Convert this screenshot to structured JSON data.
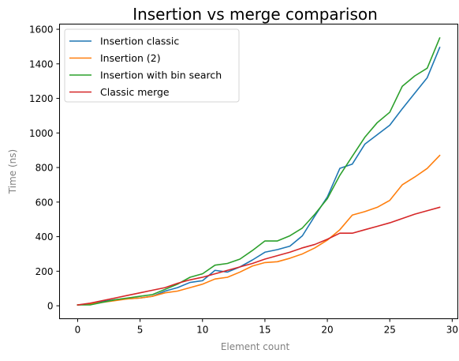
{
  "chart_data": {
    "type": "line",
    "title": "Insertion vs merge comparison",
    "xlabel": "Element count",
    "ylabel": "Time (ns)",
    "xlim": [
      -1.45,
      30.45
    ],
    "ylim": [
      -75,
      1630
    ],
    "xticks": [
      0,
      5,
      10,
      15,
      20,
      25,
      30
    ],
    "yticks": [
      0,
      200,
      400,
      600,
      800,
      1000,
      1200,
      1400,
      1600
    ],
    "grid": false,
    "legend_position": "top-left",
    "x": [
      0,
      1,
      2,
      3,
      4,
      5,
      6,
      7,
      8,
      9,
      10,
      11,
      12,
      13,
      14,
      15,
      16,
      17,
      18,
      19,
      20,
      21,
      22,
      23,
      24,
      25,
      26,
      27,
      28,
      29
    ],
    "series": [
      {
        "name": "Insertion classic",
        "color": "#1f77b4",
        "values": [
          5,
          10,
          25,
          35,
          40,
          45,
          55,
          85,
          105,
          135,
          145,
          205,
          195,
          225,
          265,
          310,
          325,
          345,
          405,
          520,
          630,
          795,
          820,
          935,
          990,
          1045,
          1140,
          1230,
          1320,
          1495
        ]
      },
      {
        "name": "Insertion (2)",
        "color": "#ff7f0e",
        "values": [
          5,
          10,
          20,
          30,
          40,
          45,
          55,
          75,
          85,
          105,
          125,
          155,
          165,
          195,
          230,
          250,
          255,
          275,
          300,
          335,
          380,
          440,
          525,
          545,
          570,
          610,
          700,
          745,
          795,
          870
        ]
      },
      {
        "name": "Insertion with bin search",
        "color": "#2ca02c",
        "values": [
          5,
          5,
          20,
          35,
          45,
          55,
          65,
          95,
          125,
          165,
          185,
          235,
          245,
          270,
          320,
          375,
          375,
          405,
          450,
          530,
          620,
          755,
          865,
          975,
          1060,
          1120,
          1270,
          1330,
          1375,
          1550
        ]
      },
      {
        "name": "Classic merge",
        "color": "#d62728",
        "values": [
          5,
          15,
          30,
          45,
          60,
          75,
          90,
          105,
          130,
          150,
          165,
          185,
          205,
          225,
          245,
          270,
          290,
          310,
          335,
          355,
          385,
          420,
          420,
          440,
          460,
          480,
          505,
          530,
          550,
          570
        ]
      }
    ]
  }
}
